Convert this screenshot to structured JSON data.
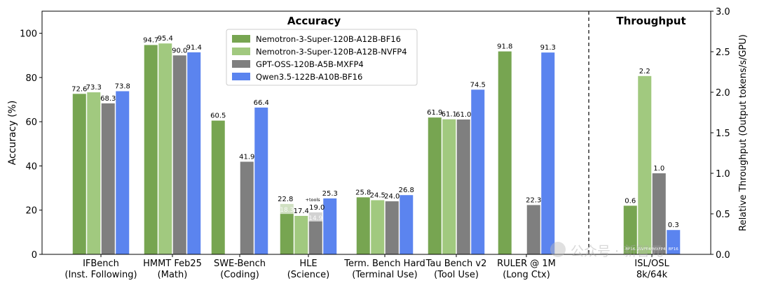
{
  "chart_data": {
    "type": "bar",
    "panels": {
      "left_title": "Accuracy",
      "right_title": "Throughput"
    },
    "ylabel_left": "Accuracy (%)",
    "ylabel_right": "Relative Throughput (Output tokens/s/GPU)",
    "ylim_left": [
      0,
      110
    ],
    "ylim_right": [
      0,
      3.0
    ],
    "yticks_left": [
      "0",
      "20",
      "40",
      "60",
      "80",
      "100"
    ],
    "yticks_right": [
      "0.0",
      "0.5",
      "1.0",
      "1.5",
      "2.0",
      "2.5",
      "3.0"
    ],
    "categories": [
      "IFBench\n(Inst. Following)",
      "HMMT Feb25\n(Math)",
      "SWE-Bench\n(Coding)",
      "HLE\n(Science)",
      "Term. Bench Hard\n(Terminal Use)",
      "Tau Bench v2\n(Tool Use)",
      "RULER @ 1M\n(Long Ctx)",
      "ISL/OSL\n8k/64k"
    ],
    "series": [
      {
        "name": "Nemotron-3-Super-120B-A12B-BF16",
        "color": "#77a551",
        "values": [
          72.6,
          94.7,
          60.5,
          18.3,
          25.8,
          61.9,
          91.8,
          0.6
        ],
        "labels": [
          "72.6",
          "94.7",
          "60.5",
          "",
          "25.8",
          "61.9",
          "91.8",
          "0.6"
        ]
      },
      {
        "name": "Nemotron-3-Super-120B-A12B-NVFP4",
        "color": "#a1c97f",
        "values": [
          73.3,
          95.4,
          null,
          17.4,
          24.5,
          61.1,
          null,
          2.2
        ],
        "labels": [
          "73.3",
          "95.4",
          "",
          "17.4",
          "24.5",
          "61.1",
          "",
          "2.2"
        ]
      },
      {
        "name": "GPT-OSS-120B-A5B-MXFP4",
        "color": "#7f7f7f",
        "values": [
          68.3,
          90.0,
          41.9,
          14.9,
          24.0,
          61.0,
          22.3,
          1.0
        ],
        "labels": [
          "68.3",
          "90.0",
          "41.9",
          "",
          "24.0",
          "61.0",
          "22.3",
          "1.0"
        ]
      },
      {
        "name": "Qwen3.5-122B-A10B-BF16",
        "color": "#5b84ef",
        "values": [
          73.8,
          91.4,
          66.4,
          25.3,
          26.8,
          74.5,
          91.3,
          0.3
        ],
        "labels": [
          "73.8",
          "91.4",
          "66.4",
          "25.3",
          "26.8",
          "74.5",
          "91.3",
          "0.3"
        ]
      }
    ],
    "hle_tools": {
      "values": [
        22.8,
        19.0
      ],
      "labels": [
        "22.8",
        "19.0"
      ],
      "note": "+tools",
      "inner_labels": [
        "18.3",
        "14.9"
      ]
    },
    "throughput_bar_labels": [
      "BF16",
      "NVFP4",
      "MXFP4",
      "BF16"
    ],
    "watermark": "公众号 · 新智元",
    "legend_position": "top-center"
  }
}
